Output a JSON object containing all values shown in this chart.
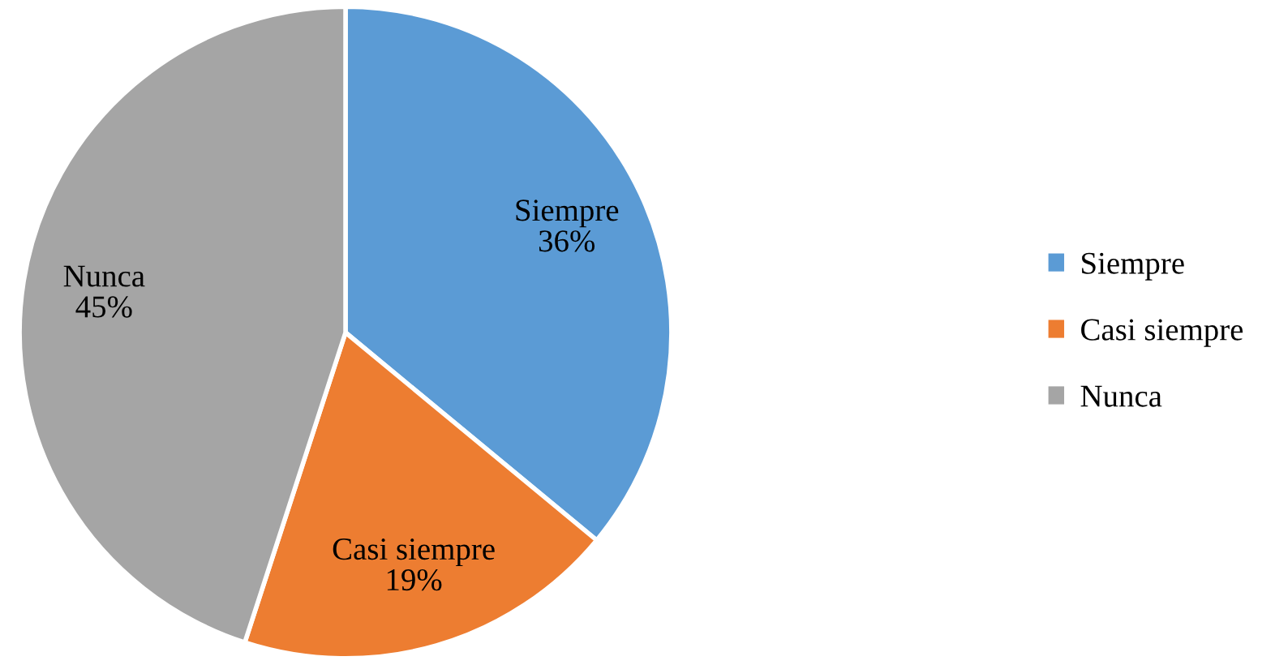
{
  "chart_data": {
    "type": "pie",
    "categories": [
      "Siempre",
      "Casi siempre",
      "Nunca"
    ],
    "values": [
      36,
      19,
      45
    ],
    "value_labels": [
      "36%",
      "19%",
      "45%"
    ],
    "colors": [
      "#5b9bd5",
      "#ed7d31",
      "#a5a5a5"
    ],
    "legend": "right"
  }
}
